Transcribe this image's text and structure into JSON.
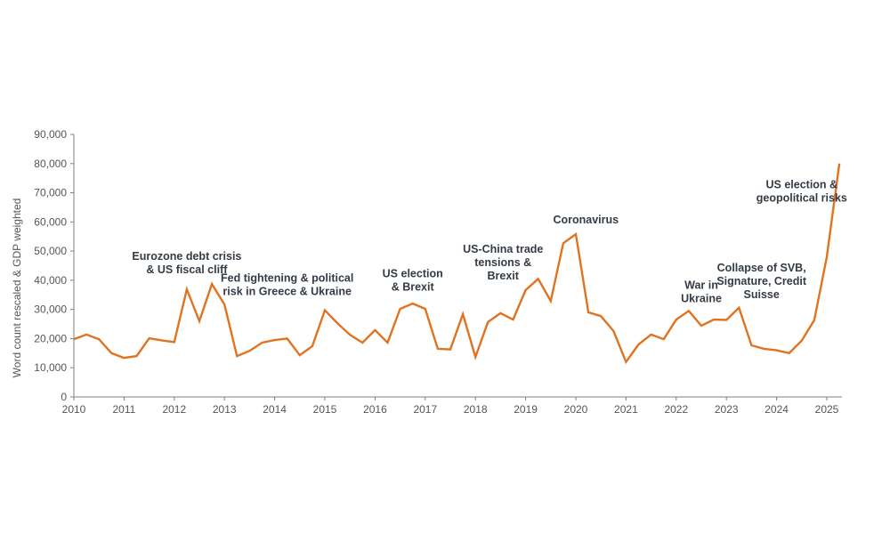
{
  "chart_data": {
    "type": "line",
    "title": "",
    "xlabel": "",
    "ylabel": "Word count rescaled & GDP weighted",
    "xlim": [
      2010,
      2025.3
    ],
    "ylim": [
      0,
      90000
    ],
    "grid": false,
    "x_ticks": [
      "2010",
      "2011",
      "2012",
      "2013",
      "2014",
      "2015",
      "2016",
      "2017",
      "2018",
      "2019",
      "2020",
      "2021",
      "2022",
      "2023",
      "2024",
      "2025"
    ],
    "y_ticks": [
      {
        "value": 0,
        "label": "0"
      },
      {
        "value": 10000,
        "label": "10,000"
      },
      {
        "value": 20000,
        "label": "20,000"
      },
      {
        "value": 30000,
        "label": "30,000"
      },
      {
        "value": 40000,
        "label": "40,000"
      },
      {
        "value": 50000,
        "label": "50,000"
      },
      {
        "value": 60000,
        "label": "60,000"
      },
      {
        "value": 70000,
        "label": "70,000"
      },
      {
        "value": 80000,
        "label": "80,000"
      },
      {
        "value": 90000,
        "label": "90,000"
      }
    ],
    "series": [
      {
        "name": "Word count",
        "color": "#e07320",
        "x": [
          2010.0,
          2010.25,
          2010.5,
          2010.75,
          2011.0,
          2011.25,
          2011.5,
          2011.75,
          2012.0,
          2012.25,
          2012.5,
          2012.75,
          2013.0,
          2013.25,
          2013.5,
          2013.75,
          2014.0,
          2014.25,
          2014.5,
          2014.75,
          2015.0,
          2015.25,
          2015.5,
          2015.75,
          2016.0,
          2016.25,
          2016.5,
          2016.75,
          2017.0,
          2017.25,
          2017.5,
          2017.75,
          2018.0,
          2018.25,
          2018.5,
          2018.75,
          2019.0,
          2019.25,
          2019.5,
          2019.75,
          2020.0,
          2020.25,
          2020.5,
          2020.75,
          2021.0,
          2021.25,
          2021.5,
          2021.75,
          2022.0,
          2022.25,
          2022.5,
          2022.75,
          2023.0,
          2023.25,
          2023.5,
          2023.75,
          2024.0,
          2024.25,
          2024.5,
          2024.75,
          2025.0,
          2025.25
        ],
        "values": [
          19800,
          21400,
          19800,
          15000,
          13400,
          14000,
          20100,
          19400,
          18800,
          36900,
          26000,
          38700,
          31700,
          14000,
          15800,
          18600,
          19500,
          20000,
          14300,
          17400,
          29700,
          25300,
          21300,
          18600,
          22900,
          18600,
          30200,
          32000,
          30200,
          16500,
          16300,
          28400,
          13700,
          25700,
          28700,
          26500,
          36600,
          40500,
          32900,
          52700,
          55800,
          29000,
          27700,
          22600,
          12000,
          18000,
          21400,
          19800,
          26500,
          29500,
          24400,
          26500,
          26400,
          30600,
          17700,
          16500,
          16000,
          15000,
          19300,
          26300,
          48000,
          80000
        ]
      }
    ],
    "annotations": [
      {
        "lines": [
          "Eurozone debt crisis",
          "& US fiscal cliff"
        ],
        "x": 2012.25,
        "y": 47000
      },
      {
        "lines": [
          "Fed tightening & political",
          "risk in Greece & Ukraine"
        ],
        "x": 2014.25,
        "y": 39500
      },
      {
        "lines": [
          "US election",
          "& Brexit"
        ],
        "x": 2016.75,
        "y": 41000
      },
      {
        "lines": [
          "US-China trade",
          "tensions &",
          "Brexit"
        ],
        "x": 2018.55,
        "y": 49500
      },
      {
        "lines": [
          "Coronavirus"
        ],
        "x": 2020.2,
        "y": 59500
      },
      {
        "lines": [
          "War in",
          "Ukraine"
        ],
        "x": 2022.5,
        "y": 37000
      },
      {
        "lines": [
          "Collapse of SVB,",
          "Signature, Credit",
          "Suisse"
        ],
        "x": 2023.7,
        "y": 43000
      },
      {
        "lines": [
          "US election &",
          "geopolitical risks"
        ],
        "x": 2024.5,
        "y": 71500
      }
    ]
  }
}
